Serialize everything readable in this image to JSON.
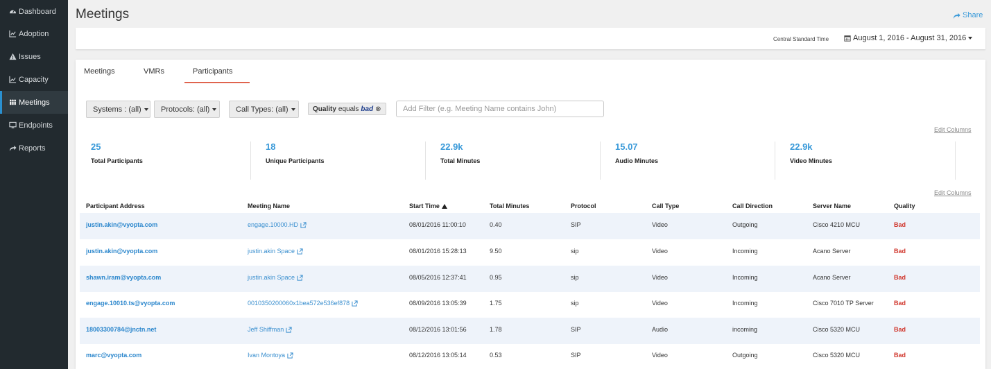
{
  "sidebar": {
    "items": [
      {
        "label": "Dashboard",
        "icon": "dashboard-icon"
      },
      {
        "label": "Adoption",
        "icon": "line-chart-icon"
      },
      {
        "label": "Issues",
        "icon": "warning-icon"
      },
      {
        "label": "Capacity",
        "icon": "area-chart-icon"
      },
      {
        "label": "Meetings",
        "icon": "people-icon"
      },
      {
        "label": "Endpoints",
        "icon": "monitor-icon"
      },
      {
        "label": "Reports",
        "icon": "share-arrow-icon"
      }
    ],
    "active": "Meetings"
  },
  "header": {
    "title": "Meetings",
    "share_label": "Share",
    "timezone": "Central Standard Time",
    "date_range": "August 1, 2016 - August 31, 2016"
  },
  "tabs": [
    "Meetings",
    "VMRs",
    "Participants"
  ],
  "active_tab": "Participants",
  "filters": {
    "systems": "Systems : (all)",
    "protocols": "Protocols: (all)",
    "call_types": "Call Types: (all)",
    "chip_field": "Quality",
    "chip_op": "equals",
    "chip_value": "bad",
    "add_filter_placeholder": "Add Filter (e.g. Meeting Name contains John)"
  },
  "edit_columns_label": "Edit Columns",
  "stats": [
    {
      "value": "25",
      "label": "Total Participants"
    },
    {
      "value": "18",
      "label": "Unique Participants"
    },
    {
      "value": "22.9k",
      "label": "Total Minutes"
    },
    {
      "value": "15.07",
      "label": "Audio Minutes"
    },
    {
      "value": "22.9k",
      "label": "Video Minutes"
    }
  ],
  "table": {
    "columns": [
      "Participant Address",
      "Meeting Name",
      "Start Time",
      "Total Minutes",
      "Protocol",
      "Call Type",
      "Call Direction",
      "Server Name",
      "Quality"
    ],
    "sort_column": "Start Time",
    "rows": [
      [
        "justin.akin@vyopta.com",
        "engage.10000.HD",
        "08/01/2016 11:00:10",
        "0.40",
        "SIP",
        "Video",
        "Outgoing",
        "Cisco 4210 MCU",
        "Bad"
      ],
      [
        "justin.akin@vyopta.com",
        "justin.akin Space",
        "08/01/2016 15:28:13",
        "9.50",
        "sip",
        "Video",
        "Incoming",
        "Acano Server",
        "Bad"
      ],
      [
        "shawn.iram@vyopta.com",
        "justin.akin Space",
        "08/05/2016 12:37:41",
        "0.95",
        "sip",
        "Video",
        "Incoming",
        "Acano Server",
        "Bad"
      ],
      [
        "engage.10010.ts@vyopta.com",
        "0010350200060x1bea572e536ef878",
        "08/09/2016 13:05:39",
        "1.75",
        "sip",
        "Video",
        "Incoming",
        "Cisco 7010 TP Server",
        "Bad"
      ],
      [
        "18003300784@jnctn.net",
        "Jeff Shiffman",
        "08/12/2016 13:01:56",
        "1.78",
        "SIP",
        "Audio",
        "incoming",
        "Cisco 5320 MCU",
        "Bad"
      ],
      [
        "marc@vyopta.com",
        "Ivan Montoya",
        "08/12/2016 13:05:14",
        "0.53",
        "SIP",
        "Video",
        "Outgoing",
        "Cisco 5320 MCU",
        "Bad"
      ]
    ]
  },
  "colors": {
    "accent": "#3a9ad9",
    "sidebar": "#222a2f",
    "bad": "#d0352b",
    "tab_underline": "#e0644e"
  }
}
